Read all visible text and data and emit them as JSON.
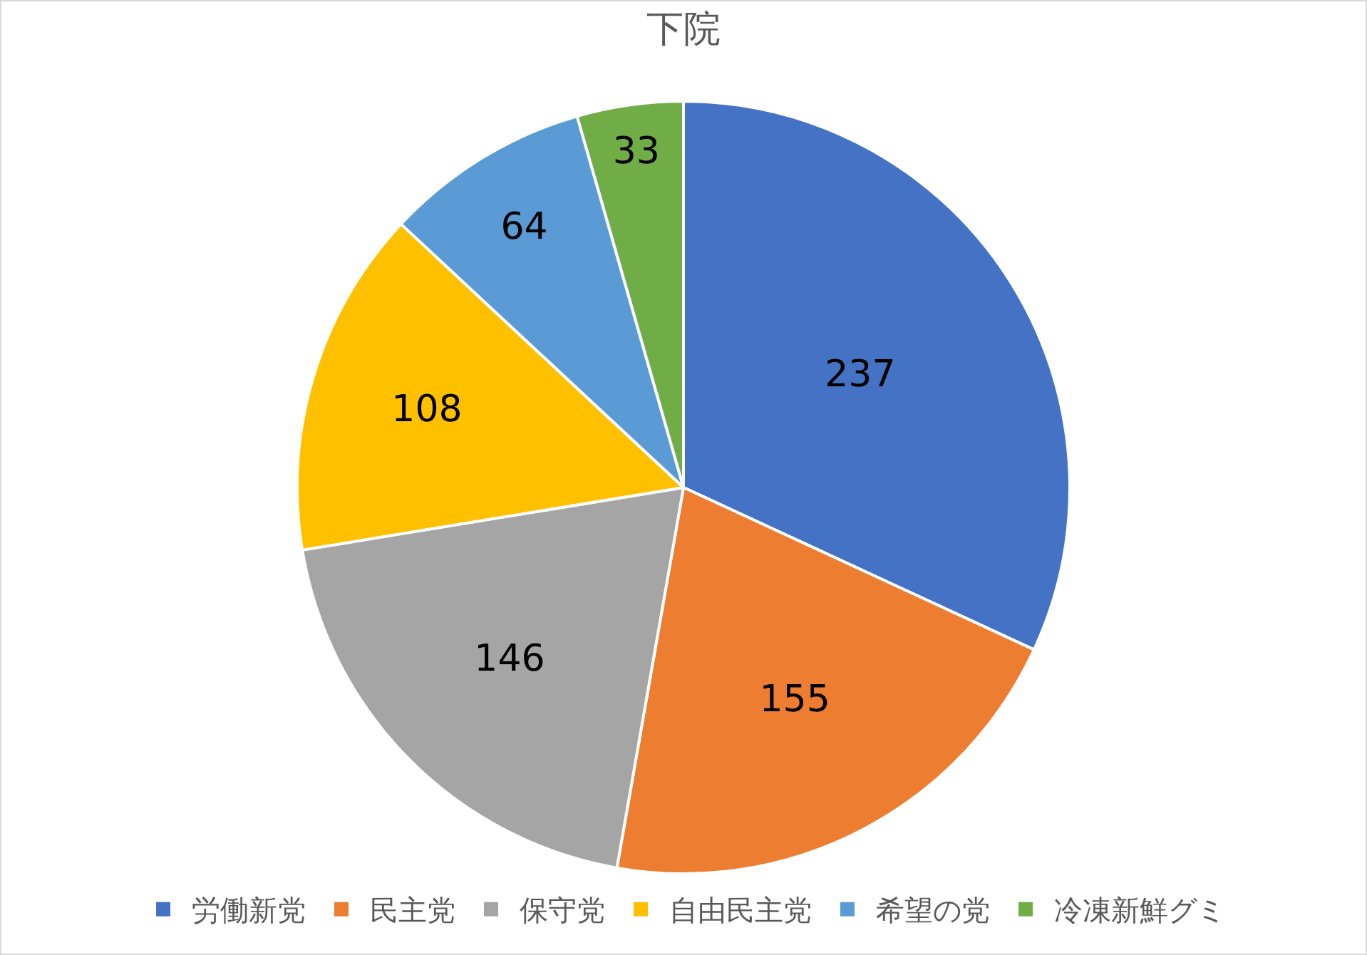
{
  "chart_data": {
    "type": "pie",
    "title": "下院",
    "categories": [
      "労働新党",
      "民主党",
      "保守党",
      "自由民主党",
      "希望の党",
      "冷凍新鮮グミ"
    ],
    "values": [
      237,
      155,
      146,
      108,
      64,
      33
    ],
    "colors": [
      "#4472c4",
      "#ed7d31",
      "#a5a5a5",
      "#ffc000",
      "#5b9bd5",
      "#70ad47"
    ],
    "data_labels": true,
    "legend": "bottom"
  }
}
